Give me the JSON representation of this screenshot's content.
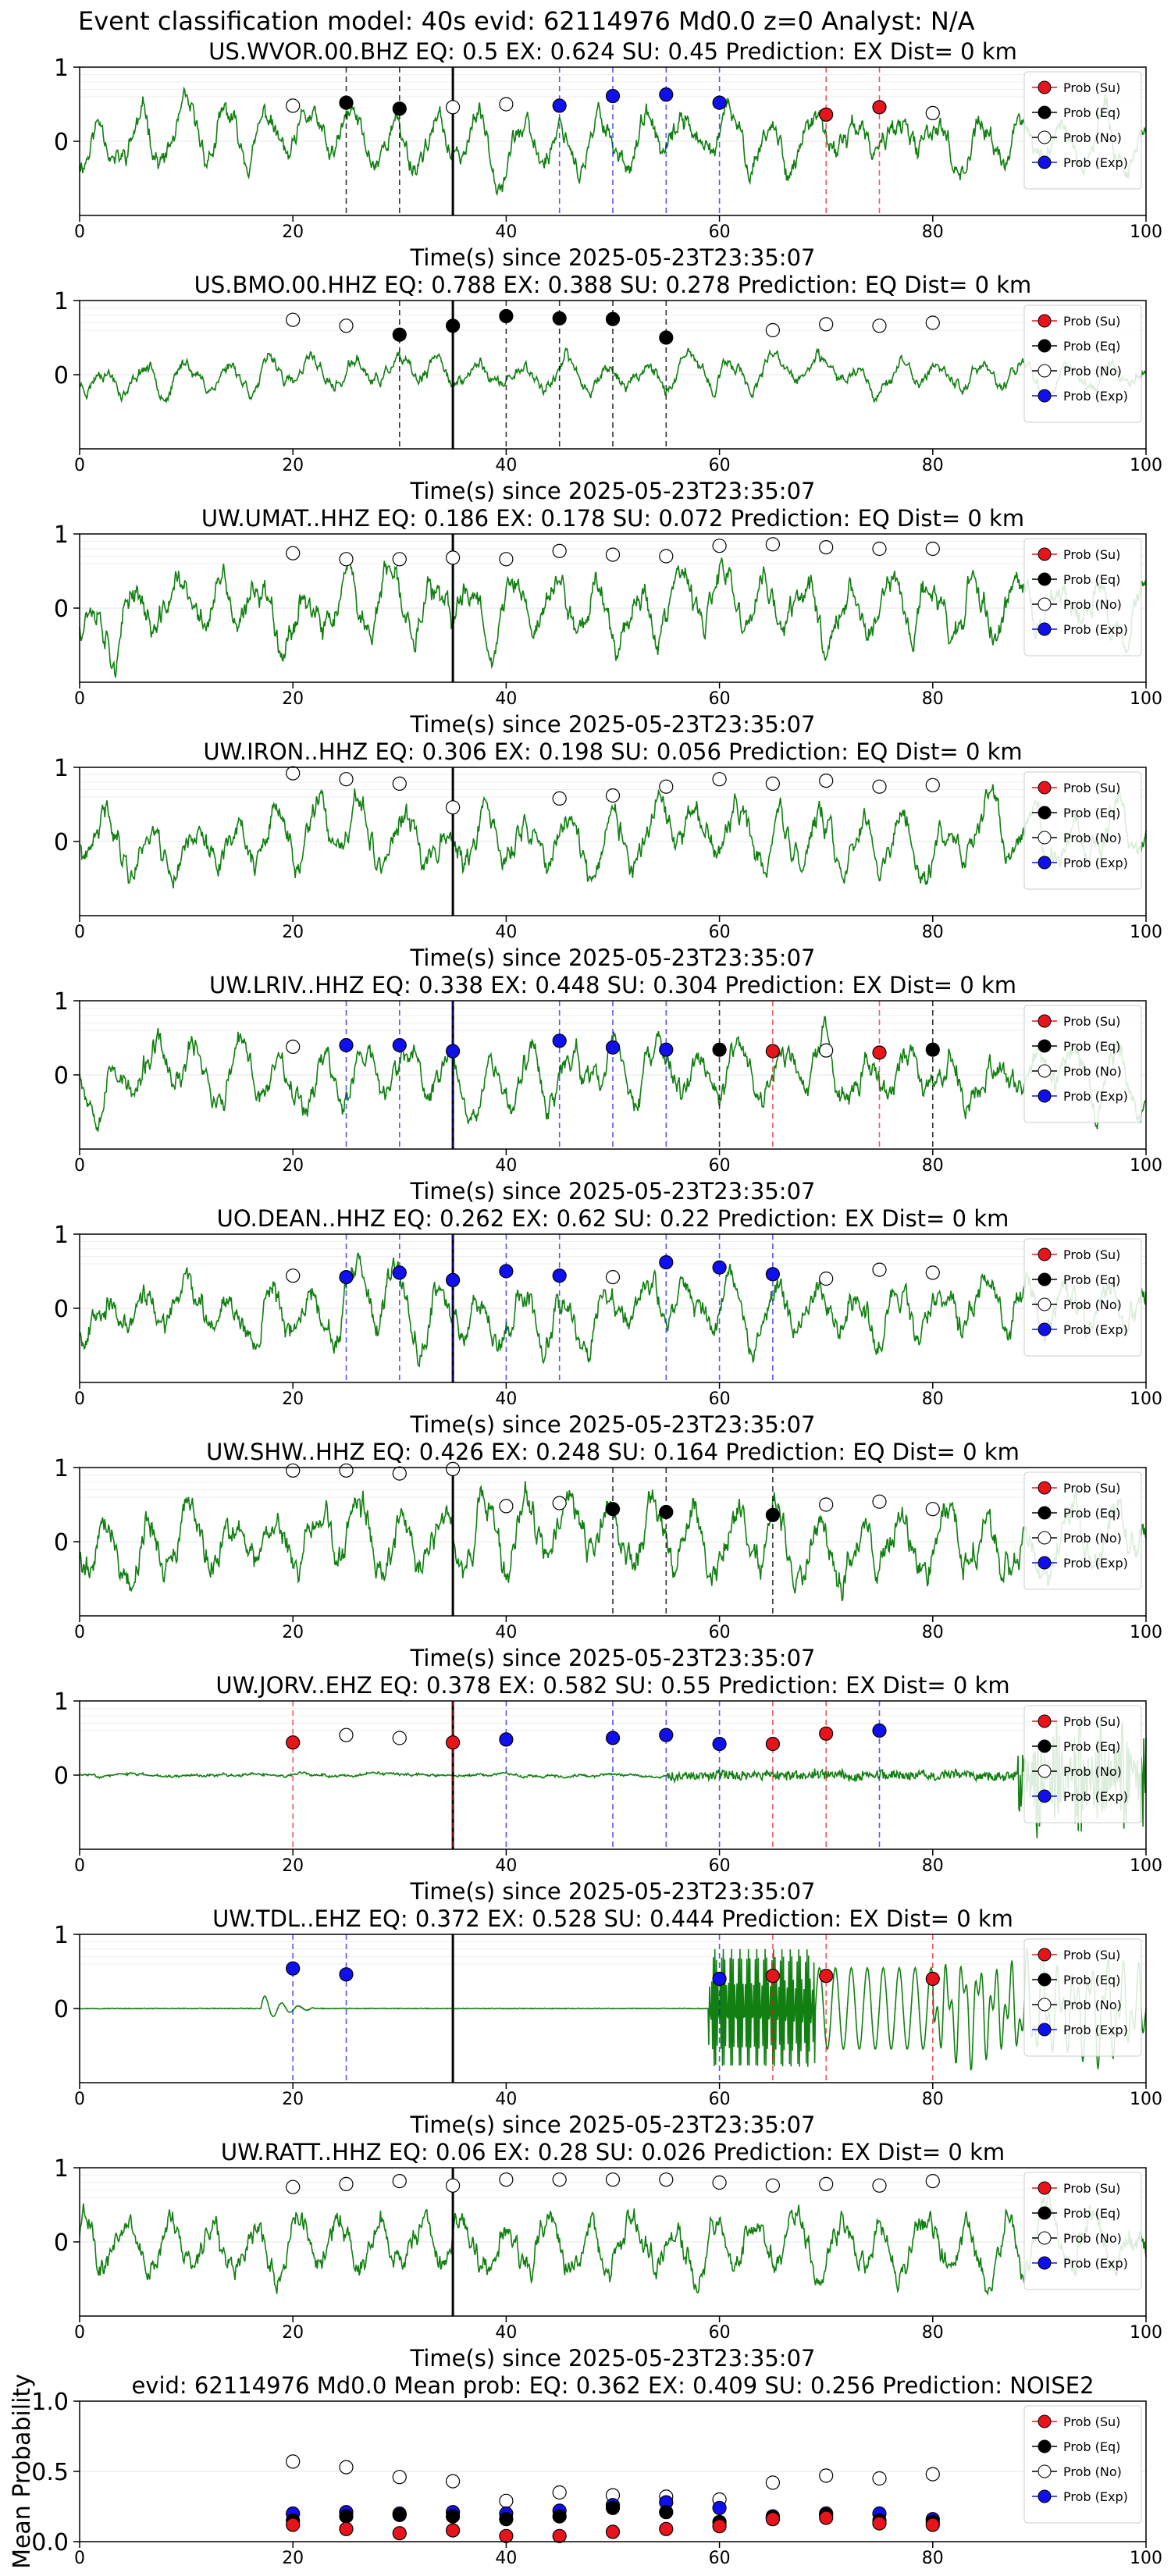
{
  "figure": {
    "title": "Event classification model: 40s evid: 62114976 Md0.0 z=0 Analyst: N/A"
  },
  "legend_entries": [
    {
      "name": "Prob (Su)",
      "color": "#e8141b"
    },
    {
      "name": "Prob (Eq)",
      "color": "#000000"
    },
    {
      "name": "Prob (No)",
      "color": "#ffffff"
    },
    {
      "name": "Prob (Exp)",
      "color": "#1010ee"
    }
  ],
  "colors": {
    "trace": "#127f12",
    "event_line": "#000000",
    "su": "#e8141b",
    "eq": "#000000",
    "no": "#ffffff",
    "exp": "#1010ee"
  },
  "chart_data": [
    {
      "type": "line",
      "title": "US.WVOR.00.BHZ   EQ: 0.5  EX: 0.624  SU: 0.45   Prediction: EX    Dist= 0 km",
      "xlabel": "Time(s) since 2025-05-23T23:35:07",
      "ylabel": "",
      "xlim": [
        0,
        100
      ],
      "ylim": [
        -1,
        1
      ],
      "xticks": [
        0,
        20,
        40,
        60,
        80,
        100
      ],
      "yticks": [
        1,
        0
      ],
      "grid": true,
      "legend": "top-right",
      "event_time": 35,
      "waveform": "normal",
      "amplitude": 0.45,
      "seed": 11,
      "probs": {
        "x": [
          20,
          25,
          30,
          35,
          40,
          45,
          50,
          55,
          60,
          65,
          70,
          75,
          80
        ],
        "class": [
          "No",
          "Eq",
          "Eq",
          "No",
          "No",
          "Exp",
          "Exp",
          "Exp",
          "Exp",
          null,
          "Su",
          "Su",
          "No"
        ],
        "value": [
          0.48,
          0.52,
          0.44,
          0.46,
          0.5,
          0.48,
          0.61,
          0.63,
          0.52,
          null,
          0.36,
          0.46,
          0.38
        ]
      }
    },
    {
      "type": "line",
      "title": "US.BMO.00.HHZ   EQ: 0.788  EX: 0.388  SU: 0.278   Prediction: EQ    Dist= 0 km",
      "xlabel": "Time(s) since 2025-05-23T23:35:07",
      "ylabel": "",
      "xlim": [
        0,
        100
      ],
      "ylim": [
        -1,
        1
      ],
      "xticks": [
        0,
        20,
        40,
        60,
        80,
        100
      ],
      "yticks": [
        1,
        0
      ],
      "grid": true,
      "legend": "top-right",
      "event_time": 35,
      "waveform": "normal",
      "amplitude": 0.25,
      "seed": 23,
      "probs": {
        "x": [
          20,
          25,
          30,
          35,
          40,
          45,
          50,
          55,
          60,
          65,
          70,
          75,
          80
        ],
        "class": [
          "No",
          "No",
          "Eq",
          "Eq",
          "Eq",
          "Eq",
          "Eq",
          "Eq",
          null,
          "No",
          "No",
          "No",
          "No"
        ],
        "value": [
          0.74,
          0.66,
          0.54,
          0.66,
          0.79,
          0.76,
          0.75,
          0.5,
          null,
          0.6,
          0.68,
          0.66,
          0.7
        ]
      }
    },
    {
      "type": "line",
      "title": "UW.UMAT..HHZ   EQ: 0.186  EX: 0.178  SU: 0.072   Prediction: EQ    Dist= 0 km",
      "xlabel": "Time(s) since 2025-05-23T23:35:07",
      "ylabel": "",
      "xlim": [
        0,
        100
      ],
      "ylim": [
        -1,
        1
      ],
      "xticks": [
        0,
        20,
        40,
        60,
        80,
        100
      ],
      "yticks": [
        1,
        0
      ],
      "grid": true,
      "legend": "top-right",
      "event_time": 35,
      "waveform": "normal",
      "amplitude": 0.55,
      "seed": 37,
      "probs": {
        "x": [
          20,
          25,
          30,
          35,
          40,
          45,
          50,
          55,
          60,
          65,
          70,
          75,
          80
        ],
        "class": [
          "No",
          "No",
          "No",
          "No",
          "No",
          "No",
          "No",
          "No",
          "No",
          "No",
          "No",
          "No",
          "No"
        ],
        "value": [
          0.74,
          0.66,
          0.66,
          0.68,
          0.66,
          0.77,
          0.72,
          0.7,
          0.84,
          0.86,
          0.82,
          0.8,
          0.8
        ]
      }
    },
    {
      "type": "line",
      "title": "UW.IRON..HHZ   EQ: 0.306  EX: 0.198  SU: 0.056   Prediction: EQ    Dist= 0 km",
      "xlabel": "Time(s) since 2025-05-23T23:35:07",
      "ylabel": "",
      "xlim": [
        0,
        100
      ],
      "ylim": [
        -1,
        1
      ],
      "xticks": [
        0,
        20,
        40,
        60,
        80,
        100
      ],
      "yticks": [
        1,
        0
      ],
      "grid": true,
      "legend": "top-right",
      "event_time": 35,
      "waveform": "normal",
      "amplitude": 0.5,
      "seed": 41,
      "probs": {
        "x": [
          20,
          25,
          30,
          35,
          40,
          45,
          50,
          55,
          60,
          65,
          70,
          75,
          80
        ],
        "class": [
          "No",
          "No",
          "No",
          "No",
          null,
          "No",
          "No",
          "No",
          "No",
          "No",
          "No",
          "No",
          "No"
        ],
        "value": [
          0.92,
          0.84,
          0.78,
          0.46,
          null,
          0.58,
          0.62,
          0.74,
          0.84,
          0.78,
          0.82,
          0.74,
          0.76
        ]
      }
    },
    {
      "type": "line",
      "title": "UW.LRIV..HHZ   EQ: 0.338  EX: 0.448  SU: 0.304   Prediction: EX    Dist= 0 km",
      "xlabel": "Time(s) since 2025-05-23T23:35:07",
      "ylabel": "",
      "xlim": [
        0,
        100
      ],
      "ylim": [
        -1,
        1
      ],
      "xticks": [
        0,
        20,
        40,
        60,
        80,
        100
      ],
      "yticks": [
        1,
        0
      ],
      "grid": true,
      "legend": "top-right",
      "event_time": 35,
      "waveform": "normal",
      "amplitude": 0.5,
      "seed": 53,
      "probs": {
        "x": [
          20,
          25,
          30,
          35,
          40,
          45,
          50,
          55,
          60,
          65,
          70,
          75,
          80
        ],
        "class": [
          "No",
          "Exp",
          "Exp",
          "Exp",
          null,
          "Exp",
          "Exp",
          "Exp",
          "Eq",
          "Su",
          "No",
          "Su",
          "Eq"
        ],
        "value": [
          0.38,
          0.4,
          0.4,
          0.32,
          null,
          0.46,
          0.37,
          0.34,
          0.34,
          0.32,
          0.33,
          0.3,
          0.34
        ]
      }
    },
    {
      "type": "line",
      "title": "UO.DEAN..HHZ   EQ: 0.262  EX: 0.62  SU: 0.22   Prediction: EX    Dist= 0 km",
      "xlabel": "Time(s) since 2025-05-23T23:35:07",
      "ylabel": "",
      "xlim": [
        0,
        100
      ],
      "ylim": [
        -1,
        1
      ],
      "xticks": [
        0,
        20,
        40,
        60,
        80,
        100
      ],
      "yticks": [
        1,
        0
      ],
      "grid": true,
      "legend": "top-right",
      "event_time": 35,
      "waveform": "normal",
      "amplitude": 0.5,
      "seed": 67,
      "probs": {
        "x": [
          20,
          25,
          30,
          35,
          40,
          45,
          50,
          55,
          60,
          65,
          70,
          75,
          80
        ],
        "class": [
          "No",
          "Exp",
          "Exp",
          "Exp",
          "Exp",
          "Exp",
          "No",
          "Exp",
          "Exp",
          "Exp",
          "No",
          "No",
          "No"
        ],
        "value": [
          0.44,
          0.42,
          0.48,
          0.38,
          0.5,
          0.44,
          0.42,
          0.62,
          0.55,
          0.46,
          0.4,
          0.52,
          0.48
        ]
      }
    },
    {
      "type": "line",
      "title": "UW.SHW..HHZ   EQ: 0.426  EX: 0.248  SU: 0.164   Prediction: EQ    Dist= 0 km",
      "xlabel": "Time(s) since 2025-05-23T23:35:07",
      "ylabel": "",
      "xlim": [
        0,
        100
      ],
      "ylim": [
        -1,
        1
      ],
      "xticks": [
        0,
        20,
        40,
        60,
        80,
        100
      ],
      "yticks": [
        1,
        0
      ],
      "grid": true,
      "legend": "top-right",
      "event_time": 35,
      "waveform": "normal",
      "amplitude": 0.6,
      "seed": 79,
      "probs": {
        "x": [
          20,
          25,
          30,
          35,
          40,
          45,
          50,
          55,
          60,
          65,
          70,
          75,
          80
        ],
        "class": [
          "No",
          "No",
          "No",
          "No",
          "No",
          "No",
          "Eq",
          "Eq",
          null,
          "Eq",
          "No",
          "No",
          "No"
        ],
        "value": [
          0.96,
          0.96,
          0.92,
          0.98,
          0.48,
          0.52,
          0.44,
          0.4,
          null,
          0.36,
          0.5,
          0.54,
          0.44
        ]
      }
    },
    {
      "type": "line",
      "title": "UW.JORV..EHZ   EQ: 0.378  EX: 0.582  SU: 0.55   Prediction: EX    Dist= 0 km",
      "xlabel": "Time(s) since 2025-05-23T23:35:07",
      "ylabel": "",
      "xlim": [
        0,
        100
      ],
      "ylim": [
        -1,
        1
      ],
      "xticks": [
        0,
        20,
        40,
        60,
        80,
        100
      ],
      "yticks": [
        1,
        0
      ],
      "grid": true,
      "legend": "top-right",
      "event_time": 35,
      "waveform": "quiet",
      "amplitude": 0.02,
      "seed": 83,
      "probs": {
        "x": [
          20,
          25,
          30,
          35,
          40,
          45,
          50,
          55,
          60,
          65,
          70,
          75,
          80
        ],
        "class": [
          "Su",
          "No",
          "No",
          "Su",
          "Exp",
          null,
          "Exp",
          "Exp",
          "Exp",
          "Su",
          "Su",
          "Exp",
          null
        ],
        "value": [
          0.44,
          0.54,
          0.5,
          0.44,
          0.48,
          null,
          0.5,
          0.54,
          0.42,
          0.42,
          0.56,
          0.6,
          null
        ]
      }
    },
    {
      "type": "line",
      "title": "UW.TDL..EHZ   EQ: 0.372  EX: 0.528  SU: 0.444   Prediction: EX    Dist= 0 km",
      "xlabel": "Time(s) since 2025-05-23T23:35:07",
      "ylabel": "",
      "xlim": [
        0,
        100
      ],
      "ylim": [
        -1,
        1
      ],
      "xticks": [
        0,
        20,
        40,
        60,
        80,
        100
      ],
      "yticks": [
        1,
        0
      ],
      "grid": true,
      "legend": "top-right",
      "event_time": 35,
      "waveform": "glitch",
      "amplitude": 0.01,
      "seed": 97,
      "probs": {
        "x": [
          20,
          25,
          30,
          35,
          40,
          45,
          50,
          55,
          60,
          65,
          70,
          75,
          80
        ],
        "class": [
          "Exp",
          "Exp",
          null,
          null,
          null,
          null,
          null,
          null,
          "Exp",
          "Su",
          "Su",
          null,
          "Su"
        ],
        "value": [
          0.54,
          0.46,
          null,
          null,
          null,
          null,
          null,
          null,
          0.4,
          0.44,
          0.44,
          null,
          0.4
        ]
      }
    },
    {
      "type": "line",
      "title": "UW.RATT..HHZ   EQ: 0.06  EX: 0.28  SU: 0.026   Prediction: EX    Dist= 0 km",
      "xlabel": "Time(s) since 2025-05-23T23:35:07",
      "ylabel": "",
      "xlim": [
        0,
        100
      ],
      "ylim": [
        -1,
        1
      ],
      "xticks": [
        0,
        20,
        40,
        60,
        80,
        100
      ],
      "yticks": [
        1,
        0
      ],
      "grid": true,
      "legend": "top-right",
      "event_time": 35,
      "waveform": "normal",
      "amplitude": 0.5,
      "seed": 101,
      "probs": {
        "x": [
          20,
          25,
          30,
          35,
          40,
          45,
          50,
          55,
          60,
          65,
          70,
          75,
          80
        ],
        "class": [
          "No",
          "No",
          "No",
          "No",
          "No",
          "No",
          "No",
          "No",
          "No",
          "No",
          "No",
          "No",
          "No"
        ],
        "value": [
          0.74,
          0.78,
          0.82,
          0.76,
          0.84,
          0.84,
          0.84,
          0.84,
          0.8,
          0.76,
          0.78,
          0.76,
          0.82
        ]
      }
    },
    {
      "type": "scatter",
      "title": "evid: 62114976  Md0.0   Mean prob:   EQ: 0.362  EX: 0.409  SU: 0.256   Prediction: NOISE2",
      "xlabel": "",
      "ylabel": "Mean Probability",
      "xlim": [
        0,
        100
      ],
      "ylim": [
        0,
        1
      ],
      "xticks": [
        0,
        20,
        40,
        60,
        80,
        100
      ],
      "yticks": [
        1.0,
        0.5,
        0.0
      ],
      "ytick_labels": [
        "1.0",
        "0.5",
        "0.0"
      ],
      "grid": true,
      "legend": "top-right",
      "x": [
        20,
        25,
        30,
        35,
        40,
        45,
        50,
        55,
        60,
        65,
        70,
        75,
        80
      ],
      "series": [
        {
          "name": "Prob (No)",
          "values": [
            0.57,
            0.53,
            0.46,
            0.43,
            0.29,
            0.35,
            0.33,
            0.32,
            0.3,
            0.42,
            0.47,
            0.45,
            0.48
          ]
        },
        {
          "name": "Prob (Exp)",
          "values": [
            0.2,
            0.21,
            0.2,
            0.21,
            0.2,
            0.22,
            0.26,
            0.28,
            0.24,
            0.18,
            0.2,
            0.2,
            0.16
          ]
        },
        {
          "name": "Prob (Eq)",
          "values": [
            0.15,
            0.18,
            0.19,
            0.18,
            0.16,
            0.18,
            0.24,
            0.21,
            0.14,
            0.17,
            0.19,
            0.15,
            0.14
          ]
        },
        {
          "name": "Prob (Su)",
          "values": [
            0.12,
            0.09,
            0.06,
            0.08,
            0.04,
            0.04,
            0.07,
            0.09,
            0.11,
            0.16,
            0.17,
            0.13,
            0.12
          ]
        }
      ]
    }
  ]
}
